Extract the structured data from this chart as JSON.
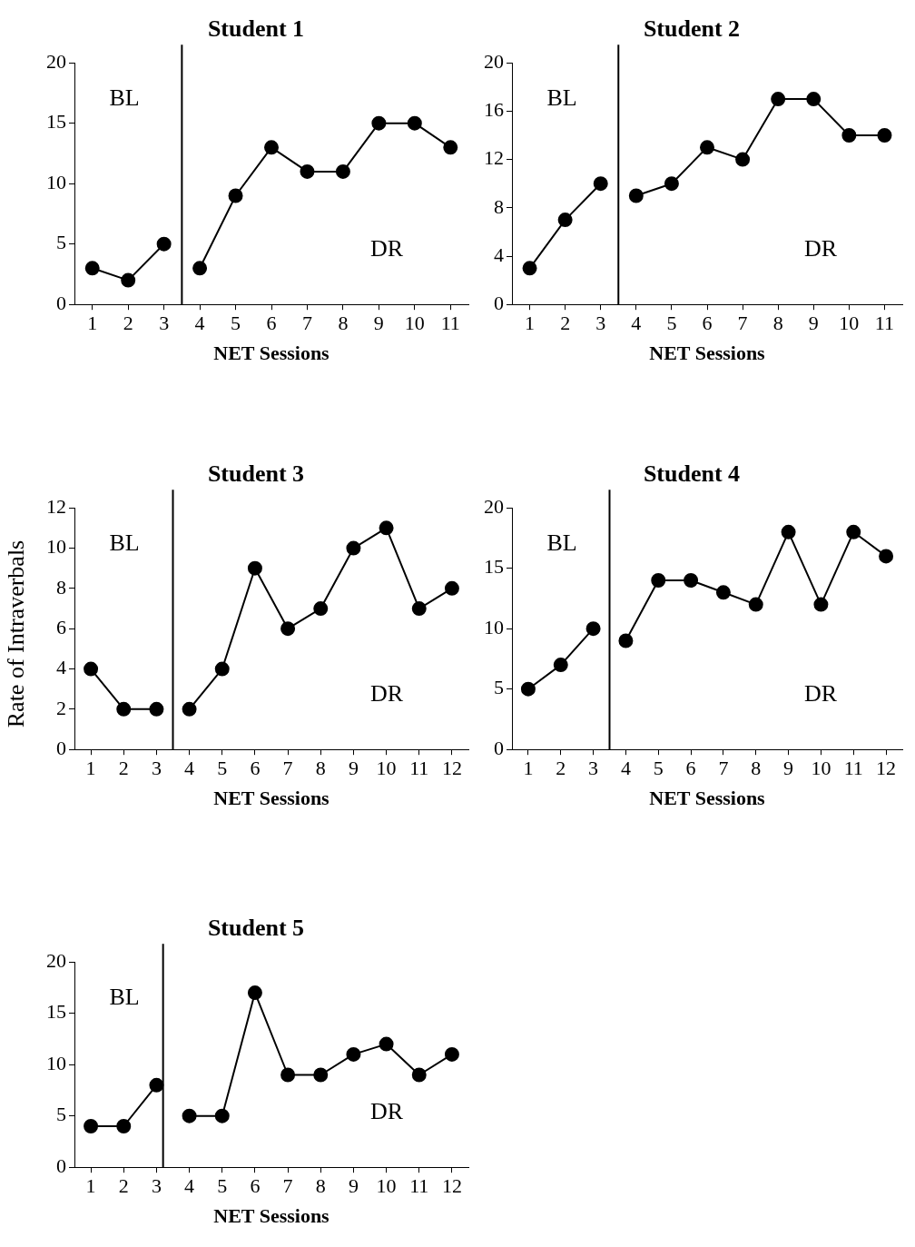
{
  "chart_data": [
    {
      "type": "line",
      "title": "Student 1",
      "xlabel": "NET Sessions",
      "x": [
        1,
        2,
        3,
        4,
        5,
        6,
        7,
        8,
        9,
        10,
        11
      ],
      "xlim": [
        0.5,
        11.5
      ],
      "xticks": [
        1,
        2,
        3,
        4,
        5,
        6,
        7,
        8,
        9,
        10,
        11
      ],
      "ylim": [
        0,
        20
      ],
      "yticks": [
        0,
        5,
        10,
        15,
        20
      ],
      "grid": false,
      "legend": false,
      "marker": "circle",
      "line_style": "solid",
      "series": [
        {
          "color": "#000000",
          "values": [
            3,
            2,
            5,
            null,
            null,
            null,
            null,
            null,
            null,
            null,
            null
          ]
        },
        {
          "color": "#000000",
          "values": [
            null,
            null,
            null,
            3,
            9,
            13,
            11,
            11,
            15,
            15,
            13
          ]
        }
      ],
      "ref_lines": [
        {
          "axis": "x",
          "value": 3.5,
          "color": "#000000"
        }
      ],
      "annotations": [
        "BL",
        "DR"
      ]
    },
    {
      "type": "line",
      "title": "Student 2",
      "xlabel": "NET Sessions",
      "x": [
        1,
        2,
        3,
        4,
        5,
        6,
        7,
        8,
        9,
        10,
        11
      ],
      "xlim": [
        0.5,
        11.5
      ],
      "xticks": [
        1,
        2,
        3,
        4,
        5,
        6,
        7,
        8,
        9,
        10,
        11
      ],
      "ylim": [
        0,
        20
      ],
      "yticks": [
        0,
        4,
        8,
        12,
        16,
        20
      ],
      "grid": false,
      "legend": false,
      "marker": "circle",
      "line_style": "solid",
      "series": [
        {
          "color": "#000000",
          "values": [
            3,
            7,
            10,
            null,
            null,
            null,
            null,
            null,
            null,
            null,
            null
          ]
        },
        {
          "color": "#000000",
          "values": [
            null,
            null,
            null,
            9,
            10,
            13,
            12,
            17,
            17,
            14,
            14
          ]
        }
      ],
      "ref_lines": [
        {
          "axis": "x",
          "value": 3.5,
          "color": "#000000"
        }
      ],
      "annotations": [
        "BL",
        "DR"
      ]
    },
    {
      "type": "line",
      "title": "Student 3",
      "xlabel": "NET Sessions",
      "ylabel": "Rate of Intraverbals",
      "x": [
        1,
        2,
        3,
        4,
        5,
        6,
        7,
        8,
        9,
        10,
        11,
        12
      ],
      "xlim": [
        0.5,
        12.5
      ],
      "xticks": [
        1,
        2,
        3,
        4,
        5,
        6,
        7,
        8,
        9,
        10,
        11,
        12
      ],
      "ylim": [
        0,
        12
      ],
      "yticks": [
        0,
        2,
        4,
        6,
        8,
        10,
        12
      ],
      "grid": false,
      "legend": false,
      "marker": "circle",
      "line_style": "solid",
      "series": [
        {
          "color": "#000000",
          "values": [
            4,
            2,
            2,
            null,
            null,
            null,
            null,
            null,
            null,
            null,
            null,
            null
          ]
        },
        {
          "color": "#000000",
          "values": [
            null,
            null,
            null,
            2,
            4,
            9,
            6,
            7,
            10,
            11,
            7,
            8
          ]
        }
      ],
      "ref_lines": [
        {
          "axis": "x",
          "value": 3.5,
          "color": "#000000"
        }
      ],
      "annotations": [
        "BL",
        "DR"
      ]
    },
    {
      "type": "line",
      "title": "Student 4",
      "xlabel": "NET Sessions",
      "x": [
        1,
        2,
        3,
        4,
        5,
        6,
        7,
        8,
        9,
        10,
        11,
        12
      ],
      "xlim": [
        0.5,
        12.5
      ],
      "xticks": [
        1,
        2,
        3,
        4,
        5,
        6,
        7,
        8,
        9,
        10,
        11,
        12
      ],
      "ylim": [
        0,
        20
      ],
      "yticks": [
        0,
        5,
        10,
        15,
        20
      ],
      "grid": false,
      "legend": false,
      "marker": "circle",
      "line_style": "solid",
      "series": [
        {
          "color": "#000000",
          "values": [
            5,
            7,
            10,
            null,
            null,
            null,
            null,
            null,
            null,
            null,
            null,
            null
          ]
        },
        {
          "color": "#000000",
          "values": [
            null,
            null,
            null,
            9,
            14,
            14,
            13,
            12,
            18,
            12,
            18,
            16
          ]
        }
      ],
      "ref_lines": [
        {
          "axis": "x",
          "value": 3.5,
          "color": "#000000"
        }
      ],
      "annotations": [
        "BL",
        "DR"
      ]
    },
    {
      "type": "line",
      "title": "Student 5",
      "xlabel": "NET Sessions",
      "x": [
        1,
        2,
        3,
        4,
        5,
        6,
        7,
        8,
        9,
        10,
        11,
        12
      ],
      "xlim": [
        0.5,
        12.5
      ],
      "xticks": [
        1,
        2,
        3,
        4,
        5,
        6,
        7,
        8,
        9,
        10,
        11,
        12
      ],
      "ylim": [
        0,
        20
      ],
      "yticks": [
        0,
        5,
        10,
        15,
        20
      ],
      "grid": false,
      "legend": false,
      "marker": "circle",
      "line_style": "solid",
      "series": [
        {
          "color": "#000000",
          "values": [
            4,
            4,
            8,
            null,
            null,
            null,
            null,
            null,
            null,
            null,
            null,
            null
          ]
        },
        {
          "color": "#000000",
          "values": [
            null,
            null,
            null,
            5,
            5,
            17,
            9,
            9,
            11,
            12,
            9,
            11
          ]
        }
      ],
      "ref_lines": [
        {
          "axis": "x",
          "value": 3.2,
          "color": "#000000"
        }
      ],
      "annotations": [
        "BL",
        "DR"
      ]
    }
  ]
}
